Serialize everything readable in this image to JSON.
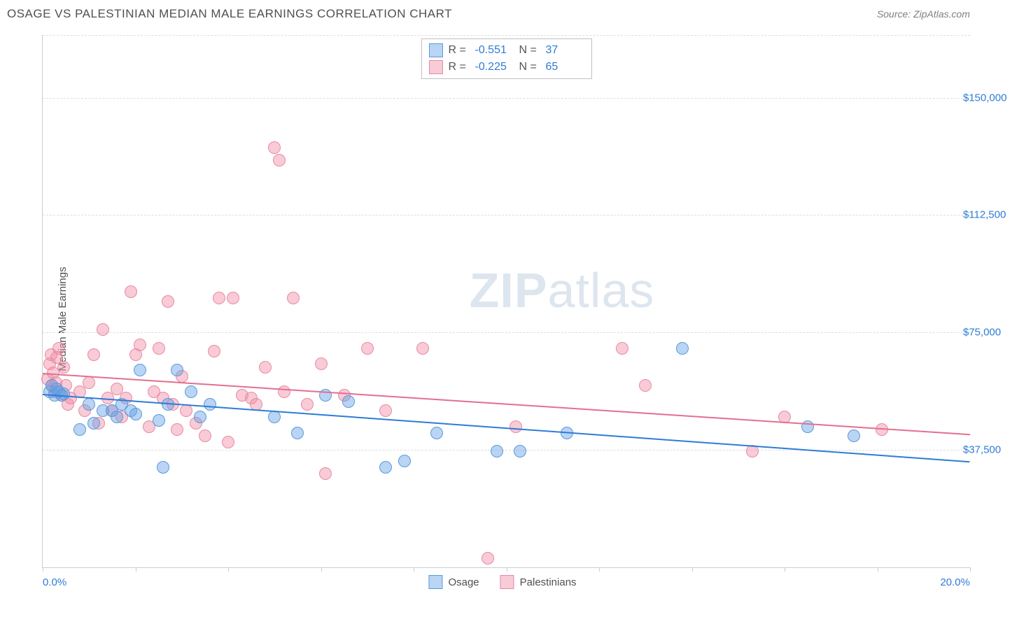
{
  "header": {
    "title": "OSAGE VS PALESTINIAN MEDIAN MALE EARNINGS CORRELATION CHART",
    "source_label": "Source:",
    "source_value": "ZipAtlas.com"
  },
  "chart": {
    "type": "scatter",
    "ylabel": "Median Male Earnings",
    "xlim": [
      0,
      20
    ],
    "ylim": [
      0,
      170000
    ],
    "xtick_positions": [
      0,
      2,
      4,
      6,
      8,
      10,
      12,
      14,
      16,
      18,
      20
    ],
    "xtick_labels": {
      "0": "0.0%",
      "20": "20.0%"
    },
    "ytick_positions": [
      37500,
      75000,
      112500,
      150000
    ],
    "ytick_labels": [
      "$37,500",
      "$75,000",
      "$112,500",
      "$150,000"
    ],
    "grid_color": "#dddddd",
    "axis_color": "#cccccc",
    "background_color": "#ffffff",
    "tick_label_color": "#2e7cd6",
    "axis_label_color": "#505050",
    "label_fontsize": 15,
    "marker_radius": 9,
    "marker_border_width": 1,
    "trend_line_width": 2,
    "watermark": {
      "prefix": "ZIP",
      "suffix": "atlas"
    },
    "series": [
      {
        "name": "Osage",
        "fill_color": "rgba(100,160,230,0.45)",
        "stroke_color": "#5a9bd8",
        "line_color": "#2e7cd6",
        "R": "-0.551",
        "N": "37",
        "trend": {
          "x1": 0,
          "y1": 55500,
          "x2": 20,
          "y2": 34000
        },
        "points": [
          [
            0.15,
            56000
          ],
          [
            0.2,
            58000
          ],
          [
            0.25,
            55000
          ],
          [
            0.3,
            57000
          ],
          [
            0.35,
            56000
          ],
          [
            0.4,
            55000
          ],
          [
            0.45,
            55500
          ],
          [
            0.8,
            44000
          ],
          [
            1.0,
            52000
          ],
          [
            1.1,
            46000
          ],
          [
            1.3,
            50000
          ],
          [
            1.5,
            50000
          ],
          [
            1.6,
            48000
          ],
          [
            1.7,
            52000
          ],
          [
            1.9,
            50000
          ],
          [
            2.0,
            49000
          ],
          [
            2.1,
            63000
          ],
          [
            2.5,
            47000
          ],
          [
            2.6,
            32000
          ],
          [
            2.7,
            52000
          ],
          [
            2.9,
            63000
          ],
          [
            3.2,
            56000
          ],
          [
            3.4,
            48000
          ],
          [
            3.6,
            52000
          ],
          [
            5.0,
            48000
          ],
          [
            5.5,
            43000
          ],
          [
            6.1,
            55000
          ],
          [
            6.6,
            53000
          ],
          [
            7.4,
            32000
          ],
          [
            7.8,
            34000
          ],
          [
            8.5,
            43000
          ],
          [
            9.8,
            37000
          ],
          [
            10.3,
            37000
          ],
          [
            11.3,
            43000
          ],
          [
            13.8,
            70000
          ],
          [
            16.5,
            45000
          ],
          [
            17.5,
            42000
          ]
        ]
      },
      {
        "name": "Palestinians",
        "fill_color": "rgba(240,140,165,0.45)",
        "stroke_color": "#e88aa5",
        "line_color": "#e36f91",
        "R": "-0.225",
        "N": "65",
        "trend": {
          "x1": 0,
          "y1": 62000,
          "x2": 20,
          "y2": 42500
        },
        "points": [
          [
            0.1,
            60000
          ],
          [
            0.15,
            65000
          ],
          [
            0.18,
            68000
          ],
          [
            0.2,
            58000
          ],
          [
            0.22,
            62000
          ],
          [
            0.25,
            56000
          ],
          [
            0.28,
            59000
          ],
          [
            0.3,
            67000
          ],
          [
            0.35,
            70000
          ],
          [
            0.4,
            55000
          ],
          [
            0.45,
            64000
          ],
          [
            0.5,
            58000
          ],
          [
            0.55,
            52000
          ],
          [
            0.6,
            54000
          ],
          [
            0.8,
            56000
          ],
          [
            0.9,
            50000
          ],
          [
            1.0,
            59000
          ],
          [
            1.1,
            68000
          ],
          [
            1.2,
            46000
          ],
          [
            1.3,
            76000
          ],
          [
            1.4,
            54000
          ],
          [
            1.5,
            50000
          ],
          [
            1.6,
            57000
          ],
          [
            1.7,
            48000
          ],
          [
            1.8,
            54000
          ],
          [
            1.9,
            88000
          ],
          [
            2.0,
            68000
          ],
          [
            2.1,
            71000
          ],
          [
            2.3,
            45000
          ],
          [
            2.4,
            56000
          ],
          [
            2.5,
            70000
          ],
          [
            2.6,
            54000
          ],
          [
            2.7,
            85000
          ],
          [
            2.8,
            52000
          ],
          [
            2.9,
            44000
          ],
          [
            3.0,
            61000
          ],
          [
            3.1,
            50000
          ],
          [
            3.3,
            46000
          ],
          [
            3.5,
            42000
          ],
          [
            3.7,
            69000
          ],
          [
            3.8,
            86000
          ],
          [
            4.0,
            40000
          ],
          [
            4.1,
            86000
          ],
          [
            4.3,
            55000
          ],
          [
            4.5,
            54000
          ],
          [
            4.6,
            52000
          ],
          [
            4.8,
            64000
          ],
          [
            5.0,
            134000
          ],
          [
            5.1,
            130000
          ],
          [
            5.2,
            56000
          ],
          [
            5.4,
            86000
          ],
          [
            5.7,
            52000
          ],
          [
            6.0,
            65000
          ],
          [
            6.1,
            30000
          ],
          [
            6.5,
            55000
          ],
          [
            7.0,
            70000
          ],
          [
            7.4,
            50000
          ],
          [
            8.2,
            70000
          ],
          [
            9.6,
            3000
          ],
          [
            10.2,
            45000
          ],
          [
            12.5,
            70000
          ],
          [
            13.0,
            58000
          ],
          [
            15.3,
            37000
          ],
          [
            16.0,
            48000
          ],
          [
            18.1,
            44000
          ]
        ]
      }
    ],
    "legend_top": {
      "R_label": "R =",
      "N_label": "N ="
    },
    "legend_bottom": [
      {
        "label": "Osage",
        "fill": "rgba(100,160,230,0.45)",
        "stroke": "#5a9bd8"
      },
      {
        "label": "Palestinians",
        "fill": "rgba(240,140,165,0.45)",
        "stroke": "#e88aa5"
      }
    ]
  }
}
